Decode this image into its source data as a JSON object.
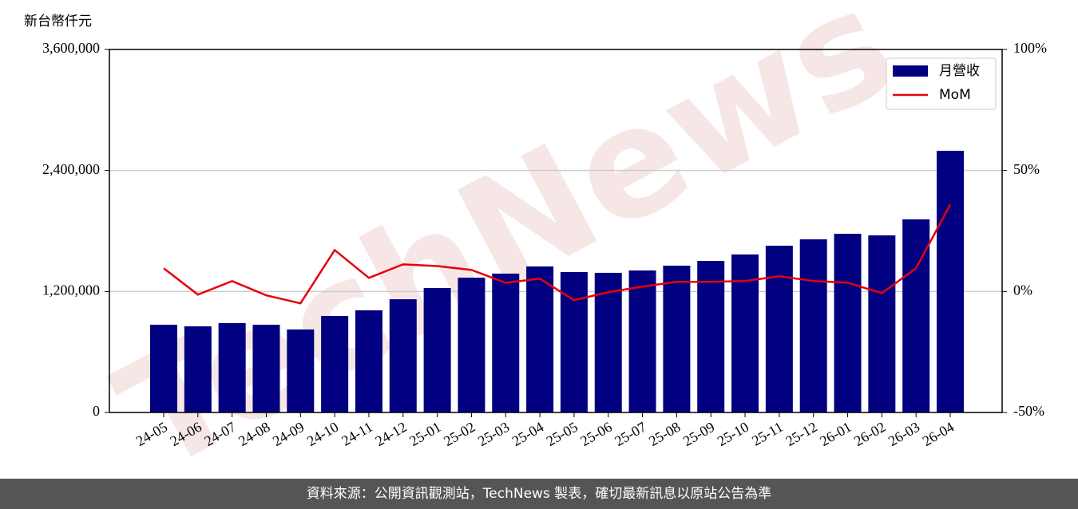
{
  "chart_data": {
    "type": "bar_line",
    "y_unit_label": "新台幣仟元",
    "watermark": "TechNews",
    "footer": "資料來源：公開資訊觀測站，TechNews 製表，確切最新訊息以原站公告為準",
    "categories": [
      "24-05",
      "24-06",
      "24-07",
      "24-08",
      "24-09",
      "24-10",
      "24-11",
      "24-12",
      "25-01",
      "25-02",
      "25-03",
      "25-04",
      "25-05",
      "25-06",
      "25-07",
      "25-08",
      "25-09",
      "25-10",
      "25-11",
      "25-12",
      "26-01",
      "26-02",
      "26-03",
      "26-04"
    ],
    "series": [
      {
        "name": "月營收",
        "type": "bar",
        "color": "#000080",
        "values": [
          870000,
          854000,
          886000,
          870000,
          823000,
          957000,
          1013000,
          1123000,
          1234000,
          1337000,
          1377000,
          1448000,
          1393000,
          1385000,
          1408000,
          1456000,
          1503000,
          1567000,
          1654000,
          1717000,
          1772000,
          1756000,
          1915000,
          2595000
        ]
      },
      {
        "name": "MoM",
        "type": "line",
        "axis": "y2",
        "color": "#e8000b",
        "values": [
          9.6,
          -1.3,
          4.3,
          -1.6,
          -4.9,
          17.1,
          5.6,
          11.2,
          10.5,
          8.9,
          3.6,
          5.3,
          -3.6,
          -0.3,
          2.0,
          4.0,
          4.0,
          4.3,
          6.3,
          4.3,
          3.6,
          -0.7,
          9.6,
          35.9
        ]
      }
    ],
    "ylim": [
      0,
      3600000
    ],
    "yticks": [
      0,
      {
        "value": 1200000,
        "label": "1,200,000"
      },
      {
        "value": 2400000,
        "label": "2,400,000"
      },
      {
        "value": 3600000,
        "label": "3,600,000"
      }
    ],
    "y2lim": [
      -50,
      100
    ],
    "y2ticks": [
      {
        "value": -50,
        "label": "-50%"
      },
      {
        "value": 0,
        "label": "0%"
      },
      {
        "value": 50,
        "label": "50%"
      },
      {
        "value": 100,
        "label": "100%"
      }
    ],
    "grid": true,
    "legend": "upper right"
  }
}
